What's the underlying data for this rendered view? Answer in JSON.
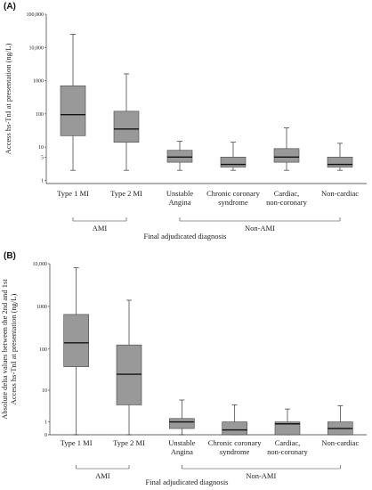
{
  "chart_data": [
    {
      "type": "box",
      "panel_label": "(A)",
      "ylabel": "Access hs-TnI at presentation (ng/L)",
      "xlabel": "Final adjudicated diagnosis",
      "yscale": "log",
      "ylim": [
        0.8,
        100000
      ],
      "ytick_labels": [
        "100,000",
        "10,000",
        "1000",
        "100",
        "10",
        "5",
        "1"
      ],
      "ytick_values": [
        100000,
        10000,
        1000,
        100,
        10,
        5,
        1
      ],
      "categories": [
        "Type 1 MI",
        "Type 2 MI",
        "Unstable Angina",
        "Chronic coronary syndrome",
        "Cardiac, non-coronary",
        "Non-cardiac"
      ],
      "category_lines": [
        [
          "Type 1 MI"
        ],
        [
          "Type 2 MI"
        ],
        [
          "Unstable",
          "Angina"
        ],
        [
          "Chronic coronary",
          "syndrome"
        ],
        [
          "Cardiac,",
          "non-coronary"
        ],
        [
          "Non-cardiac"
        ]
      ],
      "boxes": [
        {
          "min": 2,
          "q1": 22,
          "median": 95,
          "q3": 700,
          "max": 25000
        },
        {
          "min": 2,
          "q1": 14,
          "median": 35,
          "q3": 120,
          "max": 1600
        },
        {
          "min": 2,
          "q1": 3.5,
          "median": 5,
          "q3": 8,
          "max": 15
        },
        {
          "min": 2,
          "q1": 2.5,
          "median": 3,
          "q3": 5,
          "max": 14
        },
        {
          "min": 2,
          "q1": 3.5,
          "median": 5,
          "q3": 9,
          "max": 38
        },
        {
          "min": 2,
          "q1": 2.5,
          "median": 3,
          "q3": 5,
          "max": 13
        }
      ],
      "groups": [
        {
          "label": "AMI",
          "from": 0,
          "to": 1
        },
        {
          "label": "Non-AMI",
          "from": 2,
          "to": 5
        }
      ],
      "box_color": "#999999"
    },
    {
      "type": "box",
      "panel_label": "(B)",
      "ylabel_lines": [
        "Absolute delta values between the 2nd and 1st",
        "Access hs-TnI at presentation (ng/L)"
      ],
      "xlabel": "Final adjudicated diagnosis",
      "yscale": "symlog",
      "ylim": [
        0,
        10000
      ],
      "ytick_labels": [
        "10,000",
        "1000",
        "100",
        "10",
        "1",
        "0"
      ],
      "ytick_values": [
        10000,
        1000,
        100,
        10,
        1,
        0
      ],
      "categories": [
        "Type 1 MI",
        "Type 2 MI",
        "Unstable Angina",
        "Chronic coronary syndrome",
        "Cardiac, non-coronary",
        "Non-cardiac"
      ],
      "category_lines": [
        [
          "Type 1 MI"
        ],
        [
          "Type 2 MI"
        ],
        [
          "Unstable",
          "Angina"
        ],
        [
          "Chronic coronary",
          "syndrome"
        ],
        [
          "Cardiac,",
          "non-coronary"
        ],
        [
          "Non-cardiac"
        ]
      ],
      "boxes": [
        {
          "min": 0,
          "q1": 38,
          "median": 140,
          "q3": 650,
          "max": 8000
        },
        {
          "min": 0,
          "q1": 4,
          "median": 25,
          "q3": 125,
          "max": 1400
        },
        {
          "min": 0,
          "q1": 0.4,
          "median": 1,
          "q3": 1.4,
          "max": 5.5
        },
        {
          "min": 0,
          "q1": 0,
          "median": 0.3,
          "q3": 1,
          "max": 4
        },
        {
          "min": 0,
          "q1": 0,
          "median": 0.8,
          "q3": 1,
          "max": 3
        },
        {
          "min": 0,
          "q1": 0,
          "median": 0.4,
          "q3": 1,
          "max": 3.8
        }
      ],
      "groups": [
        {
          "label": "AMI",
          "from": 0,
          "to": 1
        },
        {
          "label": "Non-AMI",
          "from": 2,
          "to": 5
        }
      ],
      "box_color": "#999999"
    }
  ]
}
